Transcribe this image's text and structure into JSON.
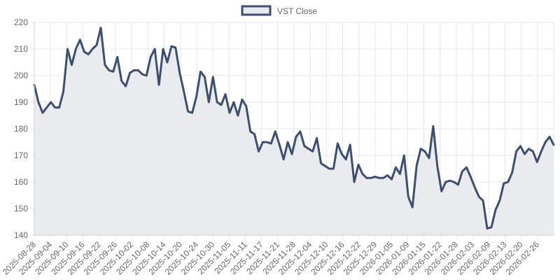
{
  "chart_data": {
    "type": "area",
    "title": "",
    "xlabel": "",
    "ylabel": "",
    "ylim": [
      140,
      220
    ],
    "yticks": [
      140,
      150,
      160,
      170,
      180,
      190,
      200,
      210,
      220
    ],
    "grid": true,
    "legend": {
      "position": "top",
      "entries": [
        "VST Close"
      ]
    },
    "colors": {
      "line": "#3d4f6e",
      "fill": "#e9ebef",
      "grid": "#e5e5e5",
      "axis": "#cccccc",
      "text": "#666666"
    },
    "x_tick_labels": [
      "2025-08-28",
      "2025-09-04",
      "2025-09-10",
      "2025-09-16",
      "2025-09-22",
      "2025-09-26",
      "2025-10-02",
      "2025-10-08",
      "2025-10-14",
      "2025-10-20",
      "2025-10-24",
      "2025-10-30",
      "2025-11-05",
      "2025-11-11",
      "2025-11-17",
      "2025-11-21",
      "2025-11-28",
      "2025-12-04",
      "2025-12-10",
      "2025-12-16",
      "2025-12-22",
      "2025-12-29",
      "2026-01-05",
      "2026-01-09",
      "2026-01-15",
      "2026-01-22",
      "2026-01-28",
      "2026-02-03",
      "2026-02-09",
      "2026-02-13",
      "2026-02-20",
      "2026-02-26"
    ],
    "series": [
      {
        "name": "VST Close",
        "values": [
          196.5,
          190,
          186,
          188,
          190,
          188,
          188,
          194,
          210,
          204,
          210,
          213.5,
          209,
          208,
          210,
          211.5,
          218,
          204,
          202,
          201.5,
          207,
          198,
          196,
          201,
          202,
          202,
          200.5,
          200,
          207,
          210,
          196.5,
          210,
          205,
          211,
          210.5,
          201,
          194,
          186.5,
          186,
          192,
          201.5,
          199.5,
          190,
          199.5,
          190,
          189,
          193,
          186,
          190,
          185,
          191,
          188.5,
          179,
          178,
          171.5,
          175,
          175,
          174.5,
          179,
          174,
          168.5,
          175,
          170.5,
          177,
          179,
          173.5,
          172.5,
          171.5,
          176.5,
          167,
          166,
          165,
          165,
          174.5,
          170.5,
          168.5,
          174,
          160,
          166.5,
          163,
          161.5,
          161.5,
          162,
          161.5,
          161.5,
          162.5,
          161,
          165.5,
          163,
          170,
          154.5,
          150.5,
          166,
          172.5,
          171.5,
          169,
          181,
          166,
          156.5,
          160,
          160.5,
          160,
          159,
          164,
          165.5,
          162,
          158,
          154.5,
          153,
          142.5,
          143,
          149.5,
          153,
          159.5,
          160,
          163.5,
          171.5,
          173.5,
          170.5,
          172.5,
          171.5,
          167.5,
          171.5,
          175,
          177,
          174
        ]
      }
    ]
  }
}
